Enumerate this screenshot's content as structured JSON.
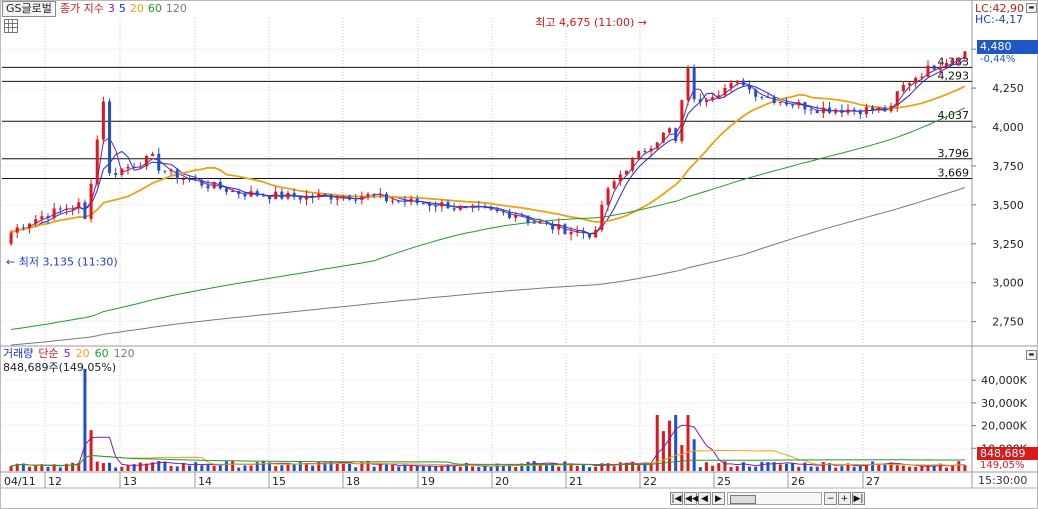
{
  "header": {
    "stock_name": "GS글로벌",
    "indicator_label": "종가 지수",
    "ma_periods": [
      "3",
      "5",
      "20",
      "60",
      "120"
    ],
    "lc_label": "LC:42,90",
    "hc_label": "HC:-4,17"
  },
  "price_panel": {
    "current_price": "4,480",
    "current_change": "-0,44%",
    "high_annotation": "최고 4,675 (11:00)",
    "low_annotation": "최저 3,135 (11:30)",
    "y_ticks": [
      "4,500",
      "4,250",
      "4,000",
      "3,750",
      "3,500",
      "3,250",
      "3,000",
      "2,750"
    ],
    "ref_lines": [
      "4,383",
      "4,293",
      "4,037",
      "3,796",
      "3,669"
    ]
  },
  "volume_panel": {
    "title": "거래량",
    "indicator_label": "단순",
    "ma_periods": [
      "5",
      "20",
      "60",
      "120"
    ],
    "current_value_text": "848,689주(149,05%)",
    "current_volume": "848,689",
    "current_volume_change": "149,05%",
    "y_ticks": [
      "40,000K",
      "30,000K",
      "20,000K",
      "10,000K"
    ]
  },
  "x_axis": {
    "dates": [
      "04/11",
      "12",
      "13",
      "14",
      "15",
      "18",
      "19",
      "20",
      "21",
      "22",
      "25",
      "26",
      "27"
    ],
    "time_label": "15:30:00"
  },
  "scroll_controls": {
    "first": "|◀",
    "prev": "◀◀",
    "back": "◀",
    "next": "▶",
    "last": "▶|"
  },
  "colors": {
    "up": "#e0181b",
    "down": "#1f4fd0",
    "ma3": "#8a1aa0",
    "ma5": "#1c2bd8",
    "ma20": "#e8a317",
    "ma60": "#1e9b2e",
    "ma120": "#7a7a7a"
  },
  "icons": [
    "grid-icon",
    "resize-icon"
  ],
  "chart_data": {
    "type": "candlestick",
    "unit": "KRW",
    "sessions": [
      "04/11",
      "12",
      "13",
      "14",
      "15",
      "18",
      "19",
      "20",
      "21",
      "22",
      "25",
      "26",
      "27"
    ],
    "close_path_by_session_end": [
      3500,
      3800,
      3600,
      3550,
      3560,
      3500,
      3440,
      3310,
      3980,
      4290,
      4120,
      4110,
      4480
    ],
    "y_range": [
      2600,
      4700
    ],
    "session_high": 4675,
    "session_low": 3135,
    "reference_levels": [
      4383,
      4293,
      4037,
      3796,
      3669
    ],
    "volume_peak_K": 45000,
    "volume_range_K": [
      0,
      48000
    ],
    "series": [
      {
        "name": "3",
        "kind": "ma"
      },
      {
        "name": "5",
        "kind": "ma"
      },
      {
        "name": "20",
        "kind": "ma"
      },
      {
        "name": "60",
        "kind": "ma"
      },
      {
        "name": "120",
        "kind": "ma"
      }
    ]
  }
}
